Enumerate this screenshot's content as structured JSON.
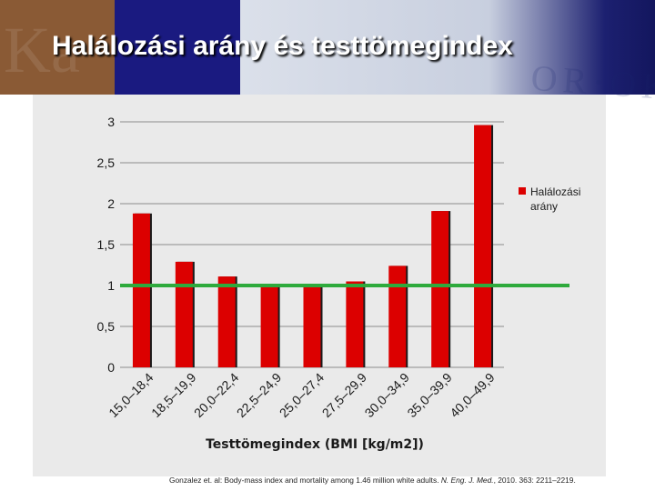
{
  "title": "Halálozási arány és testtömegindex",
  "citation": {
    "pre": "Gonzalez et. al: Body-mass index and mortality among 1.46 million white adults. ",
    "journal": "N. Eng. J. Med.",
    "post": ", 2010. 363: 2211–2219."
  },
  "colors": {
    "bar": "#dc0000",
    "bar_shadow": "#1a1a1a",
    "reference_line": "#2eaa3c",
    "background": "#eaeaea",
    "gridline": "#8c8c8c"
  },
  "chart_data": {
    "type": "bar",
    "categories": [
      "15,0–18,4",
      "18,5–19,9",
      "20,0–22,4",
      "22,5–24,9",
      "25,0–27,4",
      "27,5–29,9",
      "30,0–34,9",
      "35,0–39,9",
      "40,0–49,9"
    ],
    "series": [
      {
        "name": "Halálozási arány",
        "values": [
          1.88,
          1.29,
          1.11,
          1.0,
          1.01,
          1.05,
          1.24,
          1.91,
          2.96
        ]
      }
    ],
    "reference_line": 1,
    "ylim": [
      0,
      3
    ],
    "yticks": [
      "0",
      "0,5",
      "1",
      "1,5",
      "2",
      "2,5",
      "3"
    ],
    "xlabel": "Testtömegindex (BMI [kg/m2])",
    "ylabel": "",
    "legend": {
      "position": "right",
      "label": "Halálozási arány"
    },
    "grid": true
  }
}
